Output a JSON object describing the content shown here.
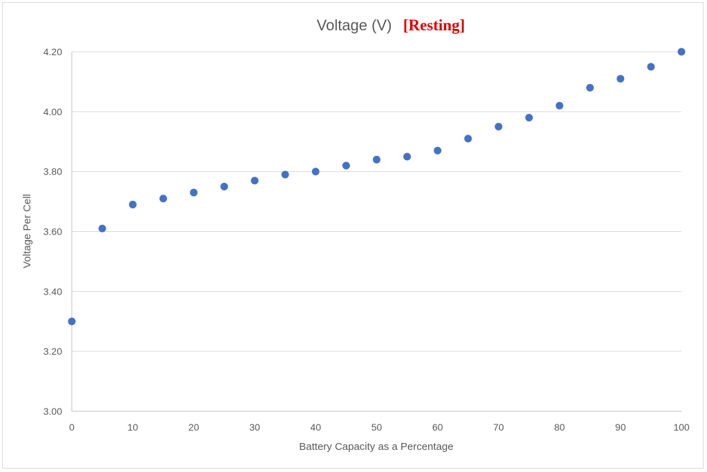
{
  "chart_data": {
    "type": "scatter",
    "title": "Voltage (V)",
    "title_tag": "[Resting]",
    "xlabel": "Battery Capacity as a Percentage",
    "ylabel": "Voltage Per Cell",
    "xlim": [
      0,
      100
    ],
    "ylim": [
      3.0,
      4.2
    ],
    "x_ticks": [
      "0",
      "10",
      "20",
      "30",
      "40",
      "50",
      "60",
      "70",
      "80",
      "90",
      "100"
    ],
    "y_ticks": [
      "3.00",
      "3.20",
      "3.40",
      "3.60",
      "3.80",
      "4.00",
      "4.20"
    ],
    "grid": "horizontal",
    "legend": "none",
    "marker_color": "#4472c4",
    "title_tag_color": "#e00000",
    "series": [
      {
        "x": [
          0,
          5,
          10,
          15,
          20,
          25,
          30,
          35,
          40,
          45,
          50,
          55,
          60,
          65,
          70,
          75,
          80,
          85,
          90,
          95,
          100
        ],
        "y": [
          3.3,
          3.61,
          3.69,
          3.71,
          3.73,
          3.75,
          3.77,
          3.79,
          3.8,
          3.82,
          3.84,
          3.85,
          3.87,
          3.91,
          3.95,
          3.98,
          4.02,
          4.08,
          4.11,
          4.15,
          4.2
        ]
      }
    ]
  }
}
